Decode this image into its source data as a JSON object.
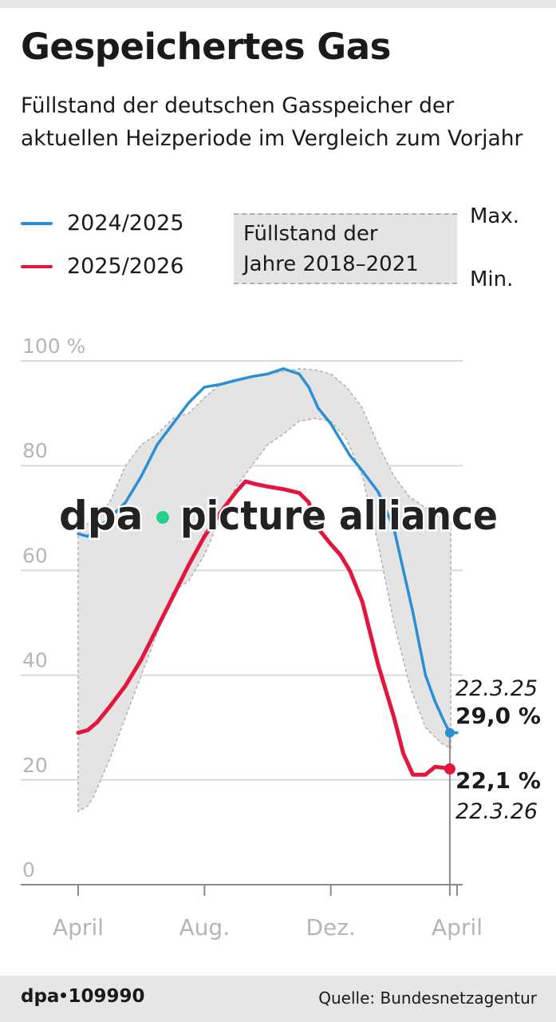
{
  "header": {
    "title": "Gespeichertes Gas",
    "subtitle": "Füllstand der deutschen Gasspeicher der aktuellen Heizperiode im Vergleich zum Vorjahr"
  },
  "legend": {
    "series_2024": "2024/2025",
    "series_2025": "2025/2026",
    "range_line1": "Füllstand der",
    "range_line2": "Jahre 2018–2021",
    "max_label": "Max.",
    "min_label": "Min."
  },
  "colors": {
    "series_2024": "#2b8fd6",
    "series_2025": "#e3173e",
    "range_fill": "#e4e4e4",
    "grid": "#d9d9d9",
    "axis_label": "#b5b5b5"
  },
  "watermark": {
    "text_left": "dpa",
    "text_right": "picture alliance"
  },
  "chart_data": {
    "type": "line",
    "title": "Gespeichertes Gas",
    "ylabel": "",
    "xlabel": "",
    "ylim": [
      0,
      100
    ],
    "y_ticks": [
      {
        "value": 100,
        "label": "100 %"
      },
      {
        "value": 80,
        "label": "80"
      },
      {
        "value": 60,
        "label": "60"
      },
      {
        "value": 40,
        "label": "40"
      },
      {
        "value": 20,
        "label": "20"
      },
      {
        "value": 0,
        "label": "0"
      }
    ],
    "x_unit": "months since 1 April",
    "xlim": [
      0,
      12
    ],
    "x_ticks": [
      {
        "value": 0,
        "label": "April"
      },
      {
        "value": 4,
        "label": "Aug."
      },
      {
        "value": 8,
        "label": "Dez."
      },
      {
        "value": 12,
        "label": "April"
      }
    ],
    "range_band": {
      "name": "Füllstand der Jahre 2018–2021",
      "x": [
        0,
        0.3,
        0.5,
        1,
        1.5,
        2,
        2.5,
        3,
        3.5,
        4,
        4.5,
        5,
        5.5,
        6,
        6.5,
        7,
        7.5,
        8,
        8.5,
        9,
        9.5,
        10,
        10.5,
        11,
        11.5,
        11.8
      ],
      "max": [
        67,
        69,
        70,
        73,
        80,
        84,
        86,
        89,
        90,
        93,
        95.5,
        96.5,
        97,
        97.5,
        98,
        98.5,
        98.3,
        97.5,
        95,
        91,
        84,
        78,
        74,
        72,
        70,
        69
      ],
      "min": [
        14,
        15,
        17,
        24,
        32,
        40,
        48,
        56,
        58,
        63,
        70,
        76,
        80,
        84,
        86,
        88.5,
        89,
        88.5,
        85,
        78,
        65,
        50,
        38,
        30,
        27,
        26
      ]
    },
    "series": [
      {
        "name": "2024/2025",
        "x": [
          0,
          0.3,
          0.6,
          1,
          1.5,
          2,
          2.5,
          3,
          3.5,
          4,
          4.5,
          5,
          5.5,
          6,
          6.5,
          7,
          7.3,
          7.6,
          8,
          8.3,
          8.6,
          9,
          9.5,
          10,
          10.3,
          10.6,
          11,
          11.3,
          11.6,
          11.77,
          12
        ],
        "values": [
          67,
          66.5,
          68,
          70,
          73,
          78,
          84,
          88,
          92,
          95,
          95.5,
          96.3,
          97,
          97.5,
          98.5,
          97.5,
          95,
          91,
          88,
          85,
          82,
          79,
          75,
          68,
          60,
          52,
          40,
          35,
          31,
          29.0,
          29.0
        ],
        "end_label_date": "22.3.25",
        "end_label_value": "29,0 %"
      },
      {
        "name": "2025/2026",
        "x": [
          0,
          0.3,
          0.6,
          1,
          1.5,
          2,
          2.5,
          3,
          3.5,
          4,
          4.5,
          5,
          5.3,
          5.6,
          6,
          6.5,
          7,
          7.3,
          7.6,
          8,
          8.3,
          8.6,
          9,
          9.5,
          10,
          10.3,
          10.6,
          11,
          11.3,
          11.6,
          11.77
        ],
        "values": [
          29,
          29.5,
          31,
          34,
          38,
          43,
          49,
          55,
          61,
          66.5,
          71,
          75,
          77,
          76.5,
          76,
          75.5,
          74.8,
          73,
          68,
          65,
          63,
          60,
          54,
          42,
          32,
          25,
          21,
          21,
          22.5,
          22.3,
          22.1
        ],
        "end_label_date": "22.3.26",
        "end_label_value": "22,1 %"
      }
    ]
  },
  "footer": {
    "agency_prefix": "dpa",
    "agency_number": "109990",
    "source": "Quelle: Bundesnetzagentur"
  }
}
